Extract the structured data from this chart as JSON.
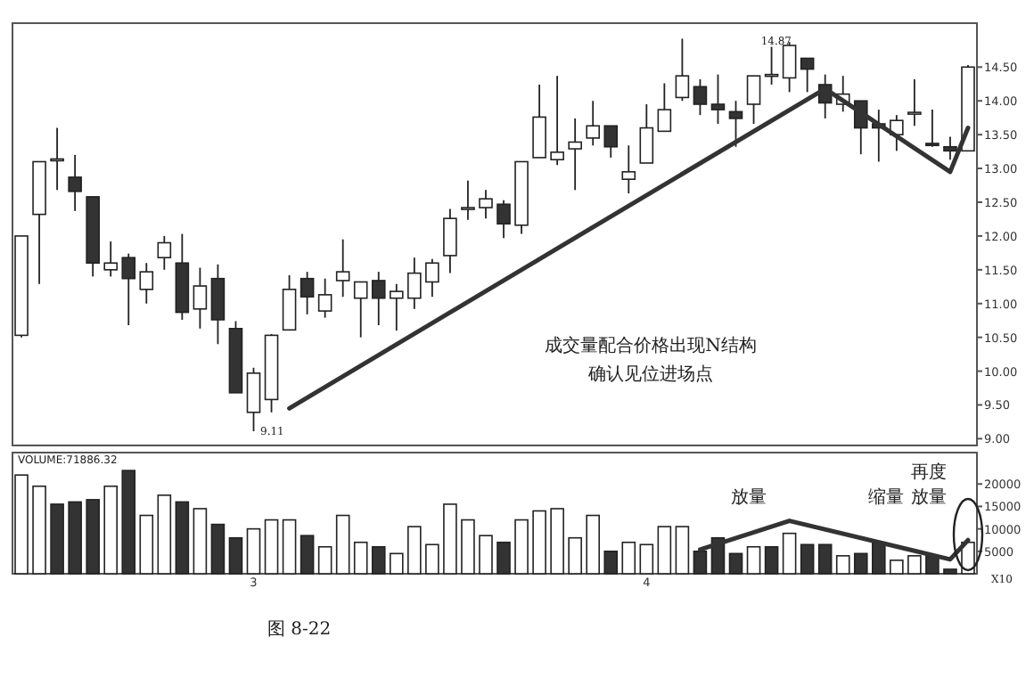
{
  "chart_data": [
    {
      "type": "candlestick",
      "categories": [
        null,
        null,
        null,
        null,
        null,
        null,
        null,
        null,
        null,
        null,
        null,
        null,
        null,
        null,
        null,
        null,
        null,
        null,
        null,
        null,
        null,
        null,
        null,
        null,
        null,
        null,
        null,
        null,
        null,
        null,
        null,
        null,
        null,
        null,
        null,
        null,
        null,
        null,
        null,
        null,
        null,
        null,
        null,
        null,
        null,
        null,
        null,
        null,
        null,
        null,
        null,
        null,
        null,
        null
      ],
      "ohlc": [
        [
          10.53,
          12.0,
          10.5,
          12.0
        ],
        [
          12.32,
          13.1,
          11.29,
          13.1
        ],
        [
          13.13,
          13.6,
          12.68,
          13.14
        ],
        [
          12.87,
          13.2,
          12.37,
          12.66
        ],
        [
          12.58,
          12.58,
          11.4,
          11.6
        ],
        [
          11.5,
          11.92,
          11.4,
          11.6
        ],
        [
          11.68,
          11.74,
          10.68,
          11.37
        ],
        [
          11.21,
          11.6,
          11.0,
          11.47
        ],
        [
          11.68,
          12.0,
          11.5,
          11.9
        ],
        [
          11.6,
          12.03,
          10.76,
          10.87
        ],
        [
          10.92,
          11.53,
          10.63,
          11.26
        ],
        [
          11.37,
          11.58,
          10.4,
          10.76
        ],
        [
          10.63,
          10.74,
          9.68,
          9.68
        ],
        [
          9.39,
          10.05,
          9.11,
          9.97
        ],
        [
          9.58,
          10.55,
          9.39,
          10.53
        ],
        [
          10.61,
          11.42,
          10.61,
          11.21
        ],
        [
          11.37,
          11.47,
          10.84,
          11.1
        ],
        [
          10.89,
          11.37,
          10.79,
          11.13
        ],
        [
          11.34,
          11.95,
          11.1,
          11.47
        ],
        [
          11.08,
          11.32,
          10.5,
          11.32
        ],
        [
          11.34,
          11.47,
          10.68,
          11.08
        ],
        [
          11.08,
          11.29,
          10.6,
          11.18
        ],
        [
          11.08,
          11.68,
          10.92,
          11.45
        ],
        [
          11.32,
          11.66,
          11.1,
          11.6
        ],
        [
          11.71,
          12.4,
          11.45,
          12.26
        ],
        [
          12.4,
          12.82,
          12.24,
          12.42
        ],
        [
          12.42,
          12.68,
          12.26,
          12.55
        ],
        [
          12.47,
          12.53,
          11.97,
          12.18
        ],
        [
          12.16,
          13.1,
          12.03,
          13.1
        ],
        [
          13.16,
          14.24,
          13.16,
          13.76
        ],
        [
          13.13,
          14.37,
          13.05,
          13.24
        ],
        [
          13.29,
          13.74,
          12.68,
          13.39
        ],
        [
          13.45,
          14.0,
          13.34,
          13.63
        ],
        [
          13.63,
          13.63,
          13.16,
          13.32
        ],
        [
          12.84,
          13.34,
          12.63,
          12.95
        ],
        [
          13.08,
          13.95,
          13.08,
          13.6
        ],
        [
          13.55,
          14.26,
          13.55,
          13.87
        ],
        [
          14.05,
          14.92,
          14.0,
          14.37
        ],
        [
          14.21,
          14.32,
          13.79,
          13.95
        ],
        [
          13.95,
          14.39,
          13.66,
          13.87
        ],
        [
          13.84,
          14.0,
          13.32,
          13.74
        ],
        [
          13.95,
          14.37,
          13.66,
          14.37
        ],
        [
          14.37,
          14.8,
          14.24,
          14.39
        ],
        [
          14.34,
          14.87,
          14.13,
          14.82
        ],
        [
          14.63,
          14.63,
          14.13,
          14.47
        ],
        [
          14.24,
          14.39,
          13.74,
          13.97
        ],
        [
          13.95,
          14.37,
          13.84,
          14.1
        ],
        [
          14.0,
          14.0,
          13.21,
          13.6
        ],
        [
          13.66,
          13.87,
          13.1,
          13.6
        ],
        [
          13.5,
          13.79,
          13.26,
          13.71
        ],
        [
          13.82,
          14.32,
          13.63,
          13.83
        ],
        [
          13.37,
          13.87,
          13.32,
          13.34
        ],
        [
          13.32,
          13.47,
          13.13,
          13.26
        ],
        [
          13.26,
          14.53,
          13.26,
          14.5
        ]
      ],
      "colors": [
        "#ffffff",
        "#ffffff",
        "#ffffff",
        "#333333",
        "#333333",
        "#ffffff",
        "#333333",
        "#ffffff",
        "#ffffff",
        "#333333",
        "#ffffff",
        "#333333",
        "#333333",
        "#ffffff",
        "#ffffff",
        "#ffffff",
        "#333333",
        "#ffffff",
        "#ffffff",
        "#ffffff",
        "#333333",
        "#ffffff",
        "#ffffff",
        "#ffffff",
        "#ffffff",
        "#ffffff",
        "#ffffff",
        "#333333",
        "#ffffff",
        "#ffffff",
        "#ffffff",
        "#ffffff",
        "#ffffff",
        "#333333",
        "#ffffff",
        "#ffffff",
        "#ffffff",
        "#ffffff",
        "#333333",
        "#333333",
        "#333333",
        "#ffffff",
        "#ffffff",
        "#ffffff",
        "#333333",
        "#333333",
        "#ffffff",
        "#333333",
        "#333333",
        "#ffffff",
        "#ffffff",
        "#333333",
        "#333333",
        "#ffffff"
      ],
      "series": [
        {
          "type": "line",
          "color": "#333333",
          "values": [
            null,
            null,
            null,
            null,
            null,
            null,
            null,
            null,
            null,
            null,
            null,
            null,
            null,
            null,
            null,
            9.45,
            null,
            null,
            null,
            null,
            null,
            null,
            null,
            null,
            null,
            null,
            null,
            null,
            null,
            null,
            null,
            null,
            null,
            null,
            null,
            null,
            null,
            null,
            null,
            null,
            null,
            null,
            null,
            null,
            null,
            14.18,
            null,
            null,
            null,
            null,
            null,
            null,
            12.95,
            13.6
          ]
        }
      ],
      "ylim": [
        8.9,
        15.15
      ],
      "yticks": [
        {
          "value": 9,
          "label": "9.00"
        },
        {
          "value": 9.5,
          "label": "9.50"
        },
        {
          "value": 10,
          "label": "10.00"
        },
        {
          "value": 10.5,
          "label": "10.50"
        },
        {
          "value": 11,
          "label": "11.00"
        },
        {
          "value": 11.5,
          "label": "11.50"
        },
        {
          "value": 12,
          "label": "12.00"
        },
        {
          "value": 12.5,
          "label": "12.50"
        },
        {
          "value": 13,
          "label": "13.00"
        },
        {
          "value": 13.5,
          "label": "13.50"
        },
        {
          "value": 14,
          "label": "14.00"
        },
        {
          "value": 14.5,
          "label": "14.50"
        }
      ],
      "annotations": [
        "成交量配合价格出现N结构",
        "确认见位进场点",
        "9.11",
        "14.87"
      ]
    },
    {
      "type": "bar",
      "title": "VOLUME:71886.32",
      "categories": [
        null,
        null,
        null,
        null,
        null,
        null,
        null,
        null,
        null,
        null,
        null,
        null,
        null,
        "3",
        null,
        null,
        null,
        null,
        null,
        null,
        null,
        null,
        null,
        null,
        null,
        null,
        null,
        null,
        null,
        null,
        null,
        null,
        null,
        null,
        null,
        "4",
        null,
        null,
        null,
        null,
        null,
        null,
        null,
        null,
        null,
        null,
        null,
        null,
        null,
        null,
        null,
        null,
        null,
        null
      ],
      "series": [
        {
          "values": [
            22000,
            19500,
            15500,
            16000,
            16500,
            19500,
            23000,
            13000,
            17500,
            16000,
            14500,
            11000,
            8000,
            10000,
            12000,
            12000,
            8500,
            6000,
            13000,
            7000,
            6000,
            4500,
            10500,
            6500,
            15500,
            12000,
            8500,
            7000,
            12000,
            14000,
            14500,
            8000,
            13000,
            5000,
            7000,
            6500,
            10500,
            10500,
            5000,
            8000,
            4500,
            6000,
            6000,
            9000,
            6500,
            6500,
            4000,
            4500,
            7000,
            3000,
            4000,
            4000,
            1000,
            7000
          ],
          "colors": [
            "#ffffff",
            "#ffffff",
            "#333333",
            "#333333",
            "#333333",
            "#ffffff",
            "#333333",
            "#ffffff",
            "#ffffff",
            "#333333",
            "#ffffff",
            "#333333",
            "#333333",
            "#ffffff",
            "#ffffff",
            "#ffffff",
            "#333333",
            "#ffffff",
            "#ffffff",
            "#ffffff",
            "#333333",
            "#ffffff",
            "#ffffff",
            "#ffffff",
            "#ffffff",
            "#ffffff",
            "#ffffff",
            "#333333",
            "#ffffff",
            "#ffffff",
            "#ffffff",
            "#ffffff",
            "#ffffff",
            "#333333",
            "#ffffff",
            "#ffffff",
            "#ffffff",
            "#ffffff",
            "#333333",
            "#333333",
            "#333333",
            "#ffffff",
            "#333333",
            "#ffffff",
            "#333333",
            "#333333",
            "#ffffff",
            "#333333",
            "#333333",
            "#ffffff",
            "#ffffff",
            "#333333",
            "#333333",
            "#ffffff"
          ]
        },
        {
          "type": "line",
          "color": "#333333",
          "values": [
            null,
            null,
            null,
            null,
            null,
            null,
            null,
            null,
            null,
            null,
            null,
            null,
            null,
            null,
            null,
            null,
            null,
            null,
            null,
            null,
            null,
            null,
            null,
            null,
            null,
            null,
            null,
            null,
            null,
            null,
            null,
            null,
            null,
            null,
            null,
            null,
            null,
            null,
            5400,
            null,
            null,
            null,
            null,
            11800,
            null,
            null,
            null,
            null,
            null,
            null,
            null,
            null,
            3200,
            7500
          ]
        }
      ],
      "ylim": [
        0,
        27000
      ],
      "yticks": [
        5000,
        10000,
        15000,
        20000
      ],
      "annotations": [
        "放量",
        "缩量",
        "再度放量",
        "X10",
        "图 8-22"
      ]
    }
  ]
}
